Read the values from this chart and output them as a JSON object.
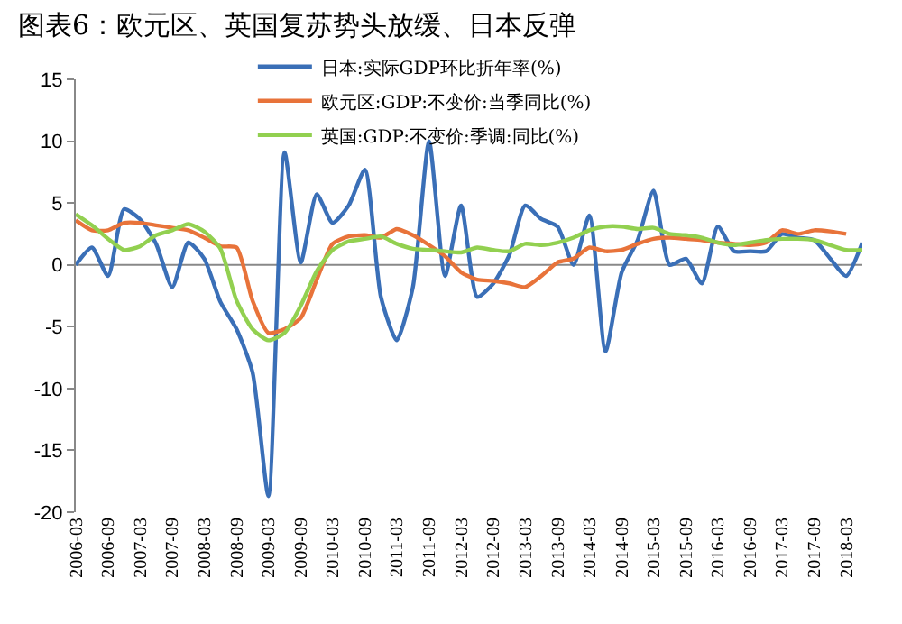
{
  "chart_data": {
    "type": "line",
    "title": "图表6：欧元区、英国复苏势头放缓、日本反弹",
    "x": [
      "2006-03",
      "2006-06",
      "2006-09",
      "2006-12",
      "2007-03",
      "2007-06",
      "2007-09",
      "2007-12",
      "2008-03",
      "2008-06",
      "2008-09",
      "2008-12",
      "2009-03",
      "2009-06",
      "2009-09",
      "2009-12",
      "2010-03",
      "2010-06",
      "2010-09",
      "2010-12",
      "2011-03",
      "2011-06",
      "2011-09",
      "2011-12",
      "2012-03",
      "2012-06",
      "2012-09",
      "2012-12",
      "2013-03",
      "2013-06",
      "2013-09",
      "2013-12",
      "2014-03",
      "2014-06",
      "2014-09",
      "2014-12",
      "2015-03",
      "2015-06",
      "2015-09",
      "2015-12",
      "2016-03",
      "2016-06",
      "2016-09",
      "2016-12",
      "2017-03",
      "2017-06",
      "2017-09",
      "2017-12",
      "2018-03",
      "2018-06"
    ],
    "series": [
      {
        "name": "日本:实际GDP环比折年率(%)",
        "color": "#3a6fb7",
        "values": [
          0,
          1.4,
          -0.9,
          4.5,
          3.7,
          1.7,
          -1.8,
          1.8,
          0.5,
          -3,
          -5.2,
          -8.7,
          -18.7,
          9.1,
          0.2,
          5.7,
          3.4,
          4.8,
          7.7,
          -2.6,
          -6.1,
          -1.8,
          10,
          -0.9,
          4.8,
          -2.6,
          -1.5,
          0.8,
          4.8,
          3.7,
          3.1,
          0,
          4,
          -7,
          -0.6,
          2,
          6,
          0,
          0.5,
          -1.5,
          3.1,
          1.1,
          1.1,
          1.1,
          2.5,
          2.2,
          2,
          0.5,
          -0.9,
          1.8
        ]
      },
      {
        "name": "欧元区:GDP:不变价:当季同比(%)",
        "color": "#e8733a",
        "values": [
          3.6,
          2.8,
          2.8,
          3.4,
          3.4,
          3.2,
          3,
          2.8,
          2.2,
          1.5,
          1.4,
          -2.9,
          -5.5,
          -5.2,
          -4.3,
          -1.2,
          1.7,
          2.3,
          2.4,
          2.2,
          2.9,
          2.4,
          1.6,
          0.7,
          -0.6,
          -1.2,
          -1.3,
          -1.5,
          -1.8,
          -0.9,
          0.2,
          0.5,
          1.4,
          1.1,
          1.2,
          1.7,
          2.1,
          2.2,
          2.1,
          2,
          1.8,
          1.7,
          1.6,
          1.8,
          2.8,
          2.5,
          2.8,
          2.7,
          2.5,
          null
        ]
      },
      {
        "name": "英国:GDP:不变价:季调:同比(%)",
        "color": "#92d050",
        "values": [
          4.1,
          3.2,
          2.1,
          1.2,
          1.5,
          2.4,
          2.8,
          3.3,
          2.7,
          1.3,
          -2.9,
          -5.2,
          -6.1,
          -5.5,
          -3.3,
          -0.5,
          1.2,
          1.9,
          2.1,
          2.3,
          1.7,
          1.3,
          1.2,
          1.1,
          1,
          1.4,
          1.2,
          1.1,
          1.7,
          1.6,
          1.8,
          2.2,
          2.8,
          3.1,
          3.1,
          2.9,
          3,
          2.5,
          2.4,
          2.2,
          1.8,
          1.6,
          1.8,
          2,
          2.1,
          2.1,
          2,
          1.6,
          1.2,
          1.2
        ]
      }
    ],
    "xlim": [
      "2006-03",
      "2018-06"
    ],
    "xticks": [
      {
        "value": "2006-03",
        "label": "2006-03"
      },
      {
        "value": "2006-09",
        "label": "2006-09"
      },
      {
        "value": "2007-03",
        "label": "2007-03"
      },
      {
        "value": "2007-09",
        "label": "2007-09"
      },
      {
        "value": "2008-03",
        "label": "2008-03"
      },
      {
        "value": "2008-09",
        "label": "2008-09"
      },
      {
        "value": "2009-03",
        "label": "2009-03"
      },
      {
        "value": "2009-09",
        "label": "2009-09"
      },
      {
        "value": "2010-03",
        "label": "2010-03"
      },
      {
        "value": "2010-09",
        "label": "2010-09"
      },
      {
        "value": "2011-03",
        "label": "2011-03"
      },
      {
        "value": "2011-09",
        "label": "2011-09"
      },
      {
        "value": "2012-03",
        "label": "2012-03"
      },
      {
        "value": "2012-09",
        "label": "2012-09"
      },
      {
        "value": "2013-03",
        "label": "2013-03"
      },
      {
        "value": "2013-09",
        "label": "2013-09"
      },
      {
        "value": "2014-03",
        "label": "2014-03"
      },
      {
        "value": "2014-09",
        "label": "2014-09"
      },
      {
        "value": "2015-03",
        "label": "2015-03"
      },
      {
        "value": "2015-09",
        "label": "2015-09"
      },
      {
        "value": "2016-03",
        "label": "2016-03"
      },
      {
        "value": "2016-09",
        "label": "2016-09"
      },
      {
        "value": "2017-03",
        "label": "2017-03"
      },
      {
        "value": "2017-09",
        "label": "2017-09"
      },
      {
        "value": "2018-03",
        "label": "2018-03"
      }
    ],
    "ylim": [
      -20,
      15
    ],
    "yticks": [
      -20,
      -15,
      -10,
      -5,
      0,
      5,
      10,
      15
    ],
    "ref_lines": [
      {
        "axis": "y",
        "value": 0,
        "color": "#888888",
        "line_style": "solid"
      }
    ],
    "grid": false,
    "legend": "top",
    "marker": "none",
    "line_style": "solid"
  }
}
